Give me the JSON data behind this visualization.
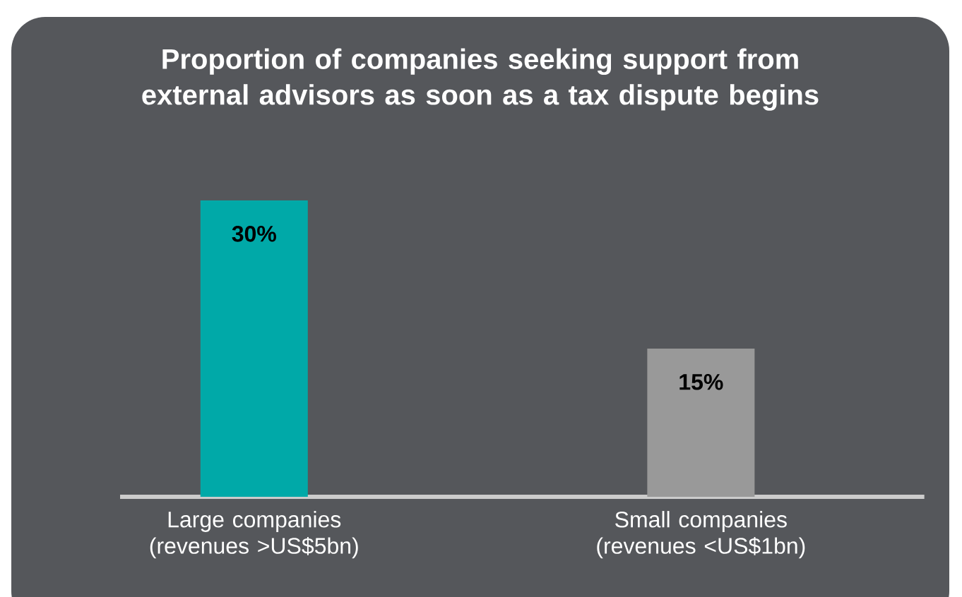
{
  "chart_data": {
    "type": "bar",
    "title": "Proportion of companies seeking support from external advisors as soon as a tax dispute begins",
    "categories": [
      "Large companies (revenues >US$5bn)",
      "Small companies (revenues <US$1bn)"
    ],
    "values": [
      30,
      15
    ],
    "value_labels": [
      "30%",
      "15%"
    ],
    "colors": [
      "#00a9a8",
      "#999999"
    ]
  }
}
